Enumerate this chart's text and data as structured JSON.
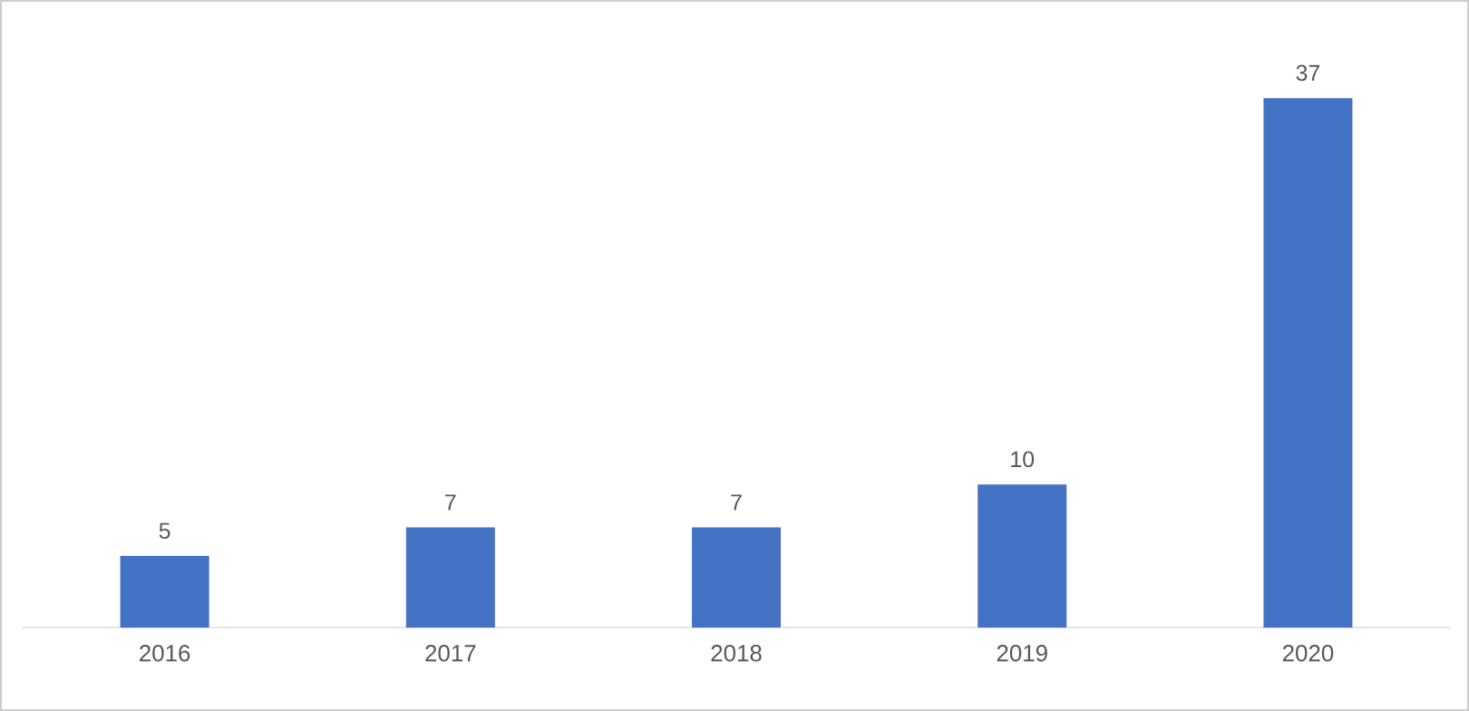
{
  "chart_data": {
    "type": "bar",
    "categories": [
      "2016",
      "2017",
      "2018",
      "2019",
      "2020"
    ],
    "values": [
      5,
      7,
      7,
      10,
      37
    ],
    "color": "#4472c4",
    "data_labels": true
  }
}
